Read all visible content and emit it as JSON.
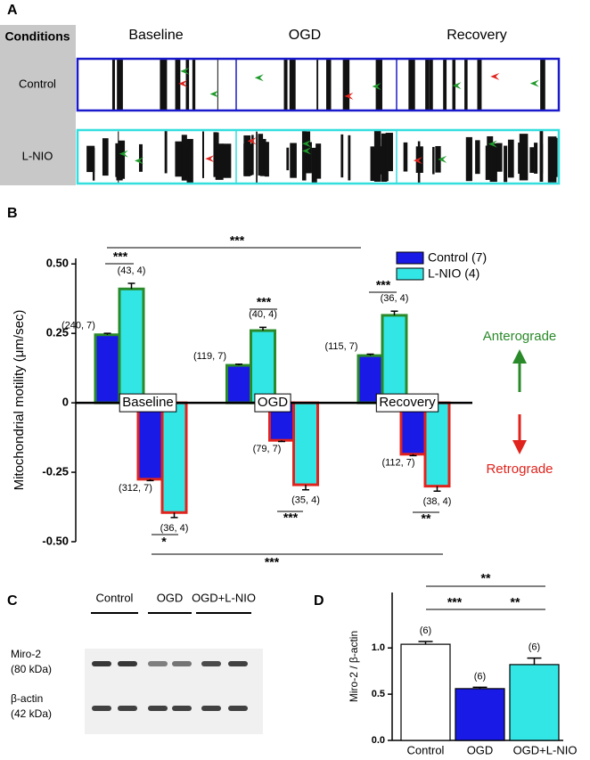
{
  "panel_a": {
    "panel_label": "A",
    "header": "Conditions",
    "columns": [
      "Baseline",
      "OGD",
      "Recovery"
    ],
    "rows": [
      "Control",
      "L-NIO"
    ],
    "row_colors": [
      "#1a1acc",
      "#33dede"
    ]
  },
  "panel_c": {
    "panel_label": "C",
    "lanes": [
      "Control",
      "OGD",
      "OGD+L-NIO"
    ],
    "rows": [
      {
        "name": "Miro-2",
        "size": "(80 kDa)"
      },
      {
        "name": "β-actin",
        "size": "(42 kDa)"
      }
    ]
  },
  "chart_data": [
    {
      "type": "bar",
      "panel_label": "B",
      "y_label": "Mitochondrial motility (μm/sec)",
      "categories": [
        "Baseline",
        "OGD",
        "Recovery"
      ],
      "ylim": [
        -0.5,
        0.52
      ],
      "yticks": [
        {
          "value": 0.5,
          "label": "0.50"
        },
        0.25,
        0,
        -0.25,
        {
          "value": -0.5,
          "label": "-0.50"
        }
      ],
      "anterograde_label": "Anterograde",
      "anterograde_color": "#2a8a2a",
      "retrograde_label": "Retrograde",
      "retrograde_color": "#e0231c",
      "series": [
        {
          "name": "Control (7)",
          "color": "#1a1ae6",
          "values": [
            0.245,
            0.135,
            0.17
          ],
          "errors": [
            0.005,
            0.004,
            0.005
          ],
          "n_labels": [
            "(240, 7)",
            "(119, 7)",
            "(115, 7)"
          ],
          "retrograde_values": [
            -0.275,
            -0.135,
            -0.185
          ],
          "retrograde_errors": [
            0.005,
            0.004,
            0.005
          ],
          "retrograde_n_labels": [
            "(312, 7)",
            "(79, 7)",
            "(112, 7)"
          ]
        },
        {
          "name": "L-NIO (4)",
          "color": "#33e6e6",
          "values": [
            0.41,
            0.26,
            0.315
          ],
          "errors": [
            0.02,
            0.012,
            0.015
          ],
          "n_labels": [
            "(43, 4)",
            "(40, 4)",
            "(36, 4)"
          ],
          "retrograde_values": [
            -0.395,
            -0.295,
            -0.3
          ],
          "retrograde_errors": [
            0.018,
            0.018,
            0.018
          ],
          "retrograde_n_labels": [
            "(36, 4)",
            "(35, 4)",
            "(38, 4)"
          ]
        }
      ],
      "annotations": [
        "***",
        "***",
        "***",
        "***",
        "*",
        "***",
        "**",
        "***"
      ]
    },
    {
      "type": "bar",
      "panel_label": "D",
      "y_label": "Miro-2 / β-actin",
      "categories": [
        "Control",
        "OGD",
        "OGD+L-NIO"
      ],
      "values": [
        1.04,
        0.56,
        0.82
      ],
      "errors": [
        0.03,
        0.015,
        0.07
      ],
      "colors": [
        "#ffffff",
        "#1a1ae6",
        "#33e6e6"
      ],
      "n_labels": [
        "(6)",
        "(6)",
        "(6)"
      ],
      "ylim": [
        0,
        1.6
      ],
      "yticks": [
        {
          "value": 0,
          "label": "0.0"
        },
        0.5,
        {
          "value": 1,
          "label": "1.0"
        }
      ],
      "annotations": [
        "**",
        "***",
        "**"
      ]
    }
  ]
}
